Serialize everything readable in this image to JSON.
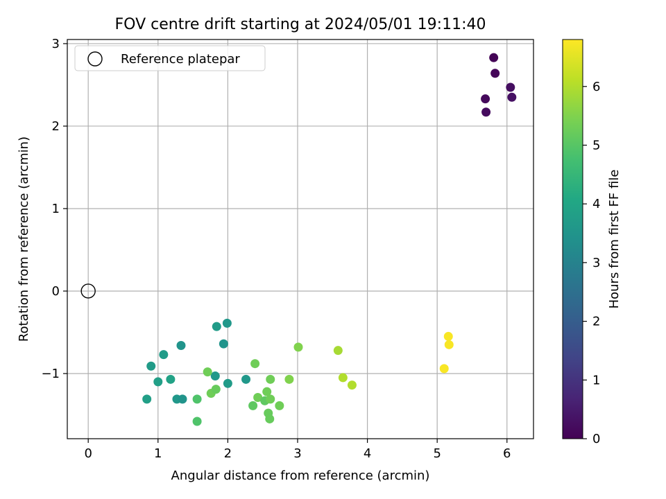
{
  "chart_data": {
    "type": "scatter",
    "title": "FOV centre drift starting at 2024/05/01 19:11:40",
    "xlabel": "Angular distance from reference (arcmin)",
    "ylabel": "Rotation from reference (arcmin)",
    "xlim": [
      -0.3,
      6.38
    ],
    "ylim": [
      -1.79,
      3.05
    ],
    "xticks": [
      0,
      1,
      2,
      3,
      4,
      5,
      6
    ],
    "yticks": [
      -1,
      0,
      1,
      2,
      3
    ],
    "xtick_labels": [
      "0",
      "1",
      "2",
      "3",
      "4",
      "5",
      "6"
    ],
    "ytick_labels": [
      "−1",
      "0",
      "1",
      "2",
      "3"
    ],
    "grid": true,
    "legend": {
      "position": "upper-left",
      "label": "Reference platepar"
    },
    "reference_point": {
      "x": 0,
      "y": 0
    },
    "colorbar": {
      "label": "Hours from first FF file",
      "colormap": "viridis",
      "range": [
        0,
        6.8
      ],
      "ticks": [
        0,
        1,
        2,
        3,
        4,
        5,
        6
      ],
      "tick_labels": [
        "0",
        "1",
        "2",
        "3",
        "4",
        "5",
        "6"
      ]
    },
    "points": [
      {
        "x": 5.81,
        "y": 2.83,
        "hours": 0.05
      },
      {
        "x": 5.83,
        "y": 2.64,
        "hours": 0.1
      },
      {
        "x": 5.69,
        "y": 2.33,
        "hours": 0.15
      },
      {
        "x": 5.7,
        "y": 2.17,
        "hours": 0.2
      },
      {
        "x": 6.05,
        "y": 2.47,
        "hours": 0.25
      },
      {
        "x": 6.07,
        "y": 2.35,
        "hours": 0.3
      },
      {
        "x": 0.84,
        "y": -1.31,
        "hours": 3.8
      },
      {
        "x": 0.9,
        "y": -0.91,
        "hours": 3.7
      },
      {
        "x": 1.0,
        "y": -1.1,
        "hours": 3.8
      },
      {
        "x": 1.08,
        "y": -0.77,
        "hours": 3.7
      },
      {
        "x": 1.18,
        "y": -1.07,
        "hours": 3.9
      },
      {
        "x": 1.27,
        "y": -1.31,
        "hours": 3.6
      },
      {
        "x": 1.33,
        "y": -0.66,
        "hours": 3.5
      },
      {
        "x": 1.35,
        "y": -1.31,
        "hours": 3.5
      },
      {
        "x": 1.84,
        "y": -0.43,
        "hours": 3.7
      },
      {
        "x": 1.82,
        "y": -1.03,
        "hours": 3.6
      },
      {
        "x": 1.94,
        "y": -0.64,
        "hours": 3.5
      },
      {
        "x": 1.99,
        "y": -0.39,
        "hours": 3.6
      },
      {
        "x": 2.0,
        "y": -1.12,
        "hours": 3.7
      },
      {
        "x": 2.26,
        "y": -1.07,
        "hours": 3.6
      },
      {
        "x": 1.56,
        "y": -1.31,
        "hours": 4.9
      },
      {
        "x": 1.56,
        "y": -1.58,
        "hours": 4.9
      },
      {
        "x": 1.71,
        "y": -0.98,
        "hours": 5.3
      },
      {
        "x": 1.76,
        "y": -1.24,
        "hours": 5.3
      },
      {
        "x": 1.83,
        "y": -1.19,
        "hours": 5.2
      },
      {
        "x": 2.36,
        "y": -1.39,
        "hours": 5.1
      },
      {
        "x": 2.39,
        "y": -0.88,
        "hours": 5.3
      },
      {
        "x": 2.43,
        "y": -1.29,
        "hours": 5.3
      },
      {
        "x": 2.53,
        "y": -1.33,
        "hours": 5.1
      },
      {
        "x": 2.56,
        "y": -1.22,
        "hours": 5.3
      },
      {
        "x": 2.58,
        "y": -1.48,
        "hours": 5.2
      },
      {
        "x": 2.6,
        "y": -1.55,
        "hours": 5.2
      },
      {
        "x": 2.61,
        "y": -1.31,
        "hours": 5.3
      },
      {
        "x": 2.61,
        "y": -1.07,
        "hours": 5.3
      },
      {
        "x": 2.74,
        "y": -1.39,
        "hours": 5.3
      },
      {
        "x": 2.88,
        "y": -1.07,
        "hours": 5.5
      },
      {
        "x": 3.01,
        "y": -0.68,
        "hours": 5.5
      },
      {
        "x": 3.58,
        "y": -0.72,
        "hours": 5.9
      },
      {
        "x": 3.65,
        "y": -1.05,
        "hours": 6.0
      },
      {
        "x": 3.78,
        "y": -1.14,
        "hours": 6.0
      },
      {
        "x": 5.16,
        "y": -0.55,
        "hours": 6.75
      },
      {
        "x": 5.17,
        "y": -0.65,
        "hours": 6.75
      },
      {
        "x": 5.1,
        "y": -0.94,
        "hours": 6.75
      }
    ]
  }
}
